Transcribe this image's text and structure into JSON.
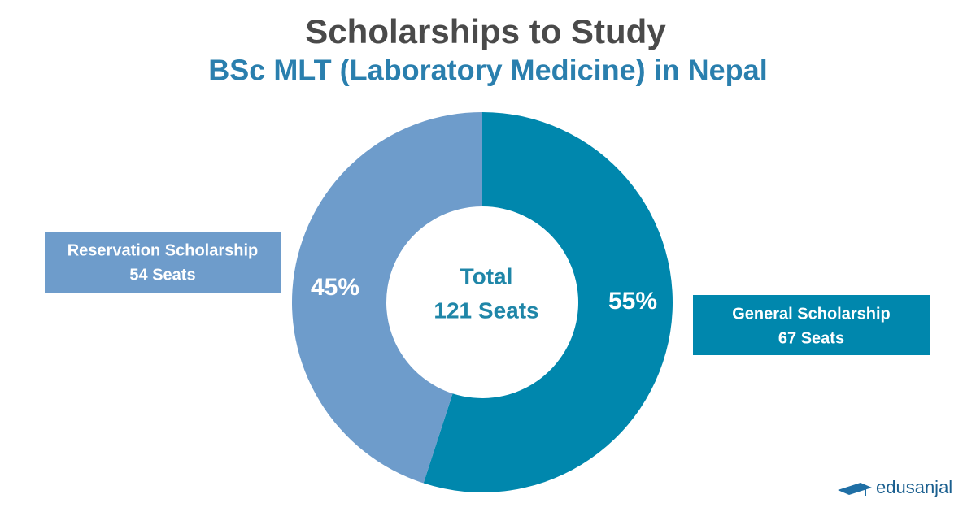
{
  "chart_data": {
    "type": "pie",
    "donut": true,
    "title": "Scholarships to Study",
    "subtitle": "BSc MLT (Laboratory Medicine) in Nepal",
    "center_text": [
      "Total",
      "121 Seats"
    ],
    "categories": [
      "General Scholarship",
      "Reservation Scholarship"
    ],
    "values": [
      55,
      45
    ],
    "value_labels": [
      "55%",
      "45%"
    ],
    "seat_labels": [
      "67 Seats",
      "54 Seats"
    ],
    "colors": [
      "#0087ad",
      "#6e9ccb"
    ]
  },
  "brand": "edusanjal"
}
